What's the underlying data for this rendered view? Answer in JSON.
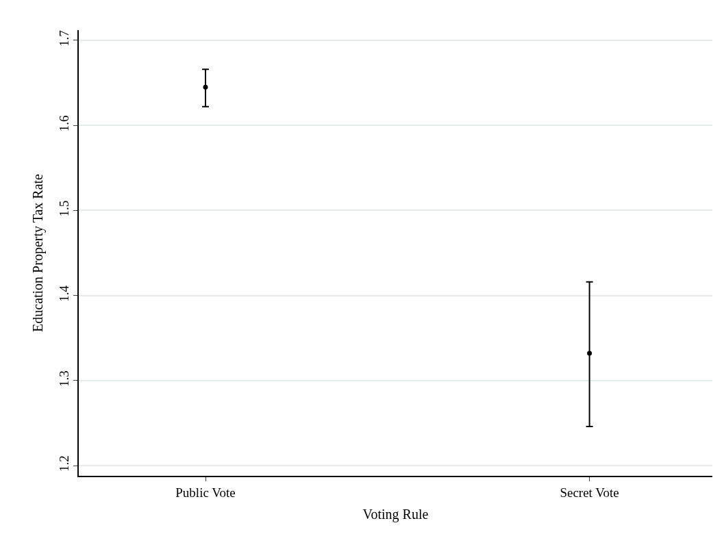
{
  "chart_data": {
    "type": "scatter",
    "xlabel": "Voting Rule",
    "ylabel": "Education Property Tax Rate",
    "categories": [
      "Public Vote",
      "Secret Vote"
    ],
    "series": [
      {
        "color": "#000000",
        "values": [
          1.645,
          1.332
        ],
        "errors": [
          [
            1.622,
            1.666
          ],
          [
            1.246,
            1.416
          ]
        ]
      }
    ],
    "ylim": [
      1.188,
      1.712
    ],
    "yticks": [
      1.2,
      1.3,
      1.4,
      1.5,
      1.6,
      1.7
    ],
    "grid": "y",
    "marker": "circle"
  }
}
